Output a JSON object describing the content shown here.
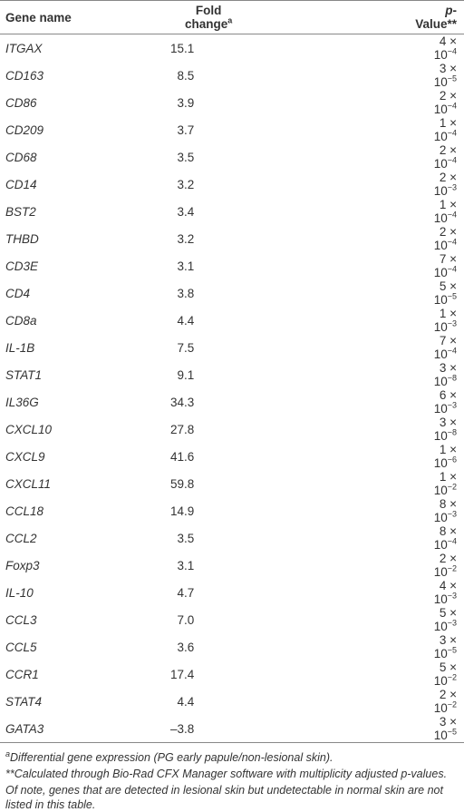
{
  "table": {
    "header": [
      {
        "text": "Gene name"
      },
      {
        "text": "Fold change",
        "sup": "a"
      },
      {
        "italic": "p",
        "text": "-Value**"
      }
    ],
    "rows": [
      [
        "ITGAX",
        "15.1",
        "4 × 10",
        "−4"
      ],
      [
        "CD163",
        "8.5",
        "3 × 10",
        "−5"
      ],
      [
        "CD86",
        "3.9",
        "2 × 10",
        "−4"
      ],
      [
        "CD209",
        "3.7",
        "1 × 10",
        "−4"
      ],
      [
        "CD68",
        "3.5",
        "2 × 10",
        "−4"
      ],
      [
        "CD14",
        "3.2",
        "2 × 10",
        "−3"
      ],
      [
        "BST2",
        "3.4",
        "1 × 10",
        "−4"
      ],
      [
        "THBD",
        "3.2",
        "2 × 10",
        "−4"
      ],
      [
        "CD3E",
        "3.1",
        "7 × 10",
        "−4"
      ],
      [
        "CD4",
        "3.8",
        "5 × 10",
        "−5"
      ],
      [
        "CD8a",
        "4.4",
        "1 × 10",
        "−3"
      ],
      [
        "IL-1B",
        "7.5",
        "7 × 10",
        "−4"
      ],
      [
        "STAT1",
        "9.1",
        "3 × 10",
        "−8"
      ],
      [
        "IL36G",
        "34.3",
        "6 × 10",
        "−3"
      ],
      [
        "CXCL10",
        "27.8",
        "3 × 10",
        "−8"
      ],
      [
        "CXCL9",
        "41.6",
        "1 × 10",
        "−6"
      ],
      [
        "CXCL11",
        "59.8",
        "1 × 10",
        "−2"
      ],
      [
        "CCL18",
        "14.9",
        "8 × 10",
        "−3"
      ],
      [
        "CCL2",
        "3.5",
        "8 × 10",
        "−4"
      ],
      [
        "Foxp3",
        "3.1",
        "2 × 10",
        "−2"
      ],
      [
        "IL-10",
        "4.7",
        "4 × 10",
        "−3"
      ],
      [
        "CCL3",
        "7.0",
        "5 × 10",
        "−3"
      ],
      [
        "CCL5",
        "3.6",
        "3 × 10",
        "−5"
      ],
      [
        "CCR1",
        "17.4",
        "5 × 10",
        "−2"
      ],
      [
        "STAT4",
        "4.4",
        "2 × 10",
        "−2"
      ],
      [
        "GATA3",
        "–3.8",
        "3 × 10",
        "−5"
      ]
    ],
    "notes": [
      {
        "sup": "a",
        "text": "Differential gene expression (PG early papule/non-lesional skin)."
      },
      {
        "text": "**Calculated through Bio-Rad CFX Manager software with multiplicity adjusted p-values."
      },
      {
        "text": "Of note, genes that are detected in lesional skin but undetectable in normal skin are not listed in this table."
      }
    ]
  }
}
